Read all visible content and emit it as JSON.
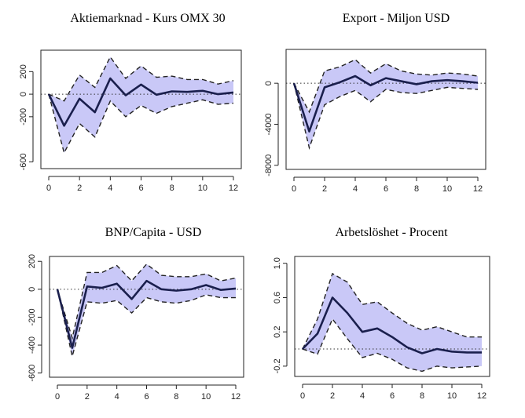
{
  "chart_data": [
    {
      "type": "line",
      "title": "Aktiemarknad - Kurs OMX 30",
      "xlim": [
        0,
        12
      ],
      "ylim": [
        -660,
        390
      ],
      "xticks": [
        0,
        2,
        4,
        6,
        8,
        10,
        12
      ],
      "yticks": [
        -600,
        -200,
        0,
        200
      ],
      "x": [
        0,
        1,
        2,
        3,
        4,
        5,
        6,
        7,
        8,
        9,
        10,
        11,
        12
      ],
      "series": [
        {
          "role": "response",
          "values": [
            0,
            -280,
            -40,
            -160,
            140,
            -10,
            85,
            -5,
            25,
            20,
            30,
            0,
            15
          ]
        },
        {
          "role": "upper",
          "values": [
            0,
            -60,
            170,
            60,
            330,
            140,
            250,
            150,
            160,
            130,
            130,
            90,
            120
          ]
        },
        {
          "role": "lower",
          "values": [
            0,
            -520,
            -260,
            -380,
            -60,
            -200,
            -100,
            -170,
            -110,
            -80,
            -50,
            -90,
            -80
          ]
        }
      ],
      "zero_line": true,
      "grid": false
    },
    {
      "type": "line",
      "title": "Export - Miljon USD",
      "xlim": [
        0,
        12
      ],
      "ylim": [
        -8400,
        3300
      ],
      "xticks": [
        0,
        2,
        4,
        6,
        8,
        10,
        12
      ],
      "yticks": [
        -8000,
        -4000,
        0
      ],
      "x": [
        0,
        1,
        2,
        3,
        4,
        5,
        6,
        7,
        8,
        9,
        10,
        11,
        12
      ],
      "series": [
        {
          "role": "response",
          "values": [
            0,
            -4700,
            -400,
            100,
            700,
            -200,
            500,
            200,
            -100,
            200,
            300,
            200,
            50
          ]
        },
        {
          "role": "upper",
          "values": [
            0,
            -2800,
            1200,
            1600,
            2300,
            1000,
            1900,
            1200,
            900,
            800,
            1000,
            900,
            700
          ]
        },
        {
          "role": "lower",
          "values": [
            0,
            -6300,
            -2100,
            -1300,
            -700,
            -1800,
            -600,
            -900,
            -1000,
            -700,
            -400,
            -500,
            -600
          ]
        }
      ],
      "zero_line": true,
      "grid": false
    },
    {
      "type": "line",
      "title": "BNP/Capita - USD",
      "xlim": [
        0,
        12
      ],
      "ylim": [
        -630,
        235
      ],
      "xticks": [
        0,
        2,
        4,
        6,
        8,
        10,
        12
      ],
      "yticks": [
        -600,
        -400,
        -200,
        0,
        200
      ],
      "x": [
        0,
        1,
        2,
        3,
        4,
        5,
        6,
        7,
        8,
        9,
        10,
        11,
        12
      ],
      "series": [
        {
          "role": "response",
          "values": [
            0,
            -420,
            20,
            10,
            40,
            -70,
            60,
            0,
            -10,
            0,
            30,
            -5,
            5
          ]
        },
        {
          "role": "upper",
          "values": [
            0,
            -350,
            120,
            120,
            170,
            60,
            180,
            100,
            90,
            90,
            110,
            60,
            80
          ]
        },
        {
          "role": "lower",
          "values": [
            0,
            -480,
            -90,
            -100,
            -80,
            -170,
            -60,
            -90,
            -100,
            -80,
            -40,
            -60,
            -60
          ]
        }
      ],
      "zero_line": true,
      "grid": false
    },
    {
      "type": "line",
      "title": "Arbetslöshet - Procent",
      "xlim": [
        0,
        12
      ],
      "ylim": [
        -0.32,
        1.08
      ],
      "xticks": [
        0,
        2,
        4,
        6,
        8,
        10,
        12
      ],
      "yticks": [
        -0.2,
        0.2,
        0.6,
        1.0
      ],
      "ytick_labels": [
        "-0.2",
        "0.2",
        "0.6",
        "1.0"
      ],
      "x": [
        0,
        1,
        2,
        3,
        4,
        5,
        6,
        7,
        8,
        9,
        10,
        11,
        12
      ],
      "series": [
        {
          "role": "response",
          "values": [
            0,
            0.18,
            0.6,
            0.42,
            0.2,
            0.24,
            0.14,
            0.02,
            -0.05,
            0.0,
            -0.03,
            -0.04,
            -0.04
          ]
        },
        {
          "role": "upper",
          "values": [
            0,
            0.35,
            0.88,
            0.78,
            0.52,
            0.55,
            0.42,
            0.3,
            0.22,
            0.26,
            0.2,
            0.14,
            0.14
          ]
        },
        {
          "role": "lower",
          "values": [
            0,
            -0.06,
            0.35,
            0.12,
            -0.1,
            -0.05,
            -0.12,
            -0.22,
            -0.26,
            -0.2,
            -0.22,
            -0.21,
            -0.2
          ]
        }
      ],
      "zero_line": true,
      "grid": false
    }
  ]
}
